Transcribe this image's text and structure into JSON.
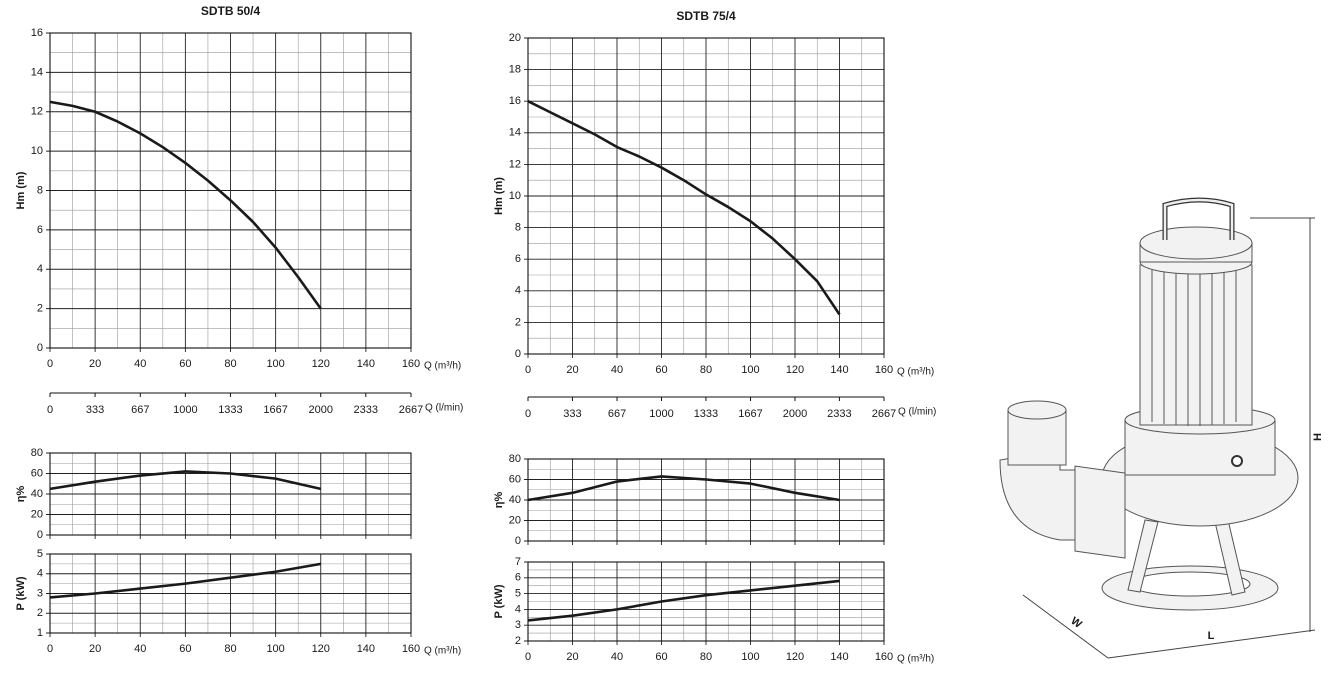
{
  "chart_data": [
    {
      "type": "line",
      "title": "SDTB 50/4",
      "ylabel": "Hm (m)",
      "xlabel": "Q (m³/h)",
      "x": [
        0,
        10,
        20,
        30,
        40,
        50,
        60,
        70,
        80,
        90,
        100,
        110,
        120
      ],
      "series": [
        {
          "color": "#1a1a1a",
          "values": [
            12.5,
            12.3,
            12,
            11.5,
            10.9,
            10.2,
            9.4,
            8.5,
            7.5,
            6.4,
            5.1,
            3.6,
            2
          ]
        }
      ],
      "xlim": [
        0,
        160
      ],
      "xticks": [
        0,
        20,
        40,
        60,
        80,
        100,
        120,
        140,
        160
      ],
      "xminor": [
        10,
        30,
        50,
        70,
        90,
        110,
        130,
        150
      ],
      "ylim": [
        0,
        16
      ],
      "yticks": [
        0,
        2,
        4,
        6,
        8,
        10,
        12,
        14,
        16
      ],
      "yminor": [
        1,
        3,
        5,
        7,
        9,
        11,
        13,
        15
      ],
      "grid": true,
      "x2label": "Q (l/min)",
      "x2lim": [
        0,
        2667
      ],
      "x2ticks": [
        0,
        333,
        667,
        1000,
        1333,
        1667,
        2000,
        2333,
        2667
      ]
    },
    {
      "type": "line",
      "ylabel": "η%",
      "x": [
        0,
        20,
        40,
        60,
        80,
        100,
        120
      ],
      "series": [
        {
          "color": "#1a1a1a",
          "values": [
            45,
            52,
            58,
            62,
            60,
            55,
            45
          ]
        }
      ],
      "xlim": [
        0,
        160
      ],
      "xticks": [
        0,
        20,
        40,
        60,
        80,
        100,
        120,
        140,
        160
      ],
      "xminor": [
        10,
        30,
        50,
        70,
        90,
        110,
        130,
        150
      ],
      "xtick_labels": false,
      "ylim": [
        0,
        80
      ],
      "yticks": [
        0,
        20,
        40,
        60,
        80
      ],
      "yminor": [
        10,
        30,
        50,
        70
      ],
      "grid": true
    },
    {
      "type": "line",
      "ylabel": "P (kW)",
      "xlabel": "Q (m³/h)",
      "x": [
        0,
        20,
        40,
        60,
        80,
        100,
        120
      ],
      "series": [
        {
          "color": "#1a1a1a",
          "values": [
            2.8,
            3,
            3.25,
            3.5,
            3.8,
            4.1,
            4.5
          ]
        }
      ],
      "xlim": [
        0,
        160
      ],
      "xticks": [
        0,
        20,
        40,
        60,
        80,
        100,
        120,
        140,
        160
      ],
      "xminor": [
        10,
        30,
        50,
        70,
        90,
        110,
        130,
        150
      ],
      "ylim": [
        1,
        5
      ],
      "yticks": [
        1,
        2,
        3,
        4,
        5
      ],
      "yminor": [
        1.5,
        2.5,
        3.5,
        4.5
      ],
      "grid": true
    },
    {
      "type": "line",
      "title": "SDTB 75/4",
      "ylabel": "Hm (m)",
      "xlabel": "Q (m³/h)",
      "x": [
        0,
        10,
        20,
        30,
        40,
        50,
        60,
        70,
        80,
        90,
        100,
        110,
        120,
        130,
        140
      ],
      "series": [
        {
          "color": "#1a1a1a",
          "values": [
            16,
            15.3,
            14.6,
            13.9,
            13.1,
            12.5,
            11.8,
            11,
            10.1,
            9.3,
            8.4,
            7.3,
            6,
            4.6,
            2.5
          ]
        }
      ],
      "xlim": [
        0,
        160
      ],
      "xticks": [
        0,
        20,
        40,
        60,
        80,
        100,
        120,
        140,
        160
      ],
      "xminor": [
        10,
        30,
        50,
        70,
        90,
        110,
        130,
        150
      ],
      "ylim": [
        0,
        20
      ],
      "yticks": [
        0,
        2,
        4,
        6,
        8,
        10,
        12,
        14,
        16,
        18,
        20
      ],
      "yminor": [
        1,
        3,
        5,
        7,
        9,
        11,
        13,
        15,
        17,
        19
      ],
      "grid": true,
      "x2label": "Q (l/min)",
      "x2lim": [
        0,
        2667
      ],
      "x2ticks": [
        0,
        333,
        667,
        1000,
        1333,
        1667,
        2000,
        2333,
        2667
      ]
    },
    {
      "type": "line",
      "ylabel": "η%",
      "x": [
        0,
        20,
        40,
        60,
        80,
        100,
        120,
        140
      ],
      "series": [
        {
          "color": "#1a1a1a",
          "values": [
            40,
            47,
            58,
            63,
            60,
            56,
            47,
            40
          ]
        }
      ],
      "xlim": [
        0,
        160
      ],
      "xticks": [
        0,
        20,
        40,
        60,
        80,
        100,
        120,
        140,
        160
      ],
      "xminor": [
        10,
        30,
        50,
        70,
        90,
        110,
        130,
        150
      ],
      "xtick_labels": false,
      "ylim": [
        0,
        80
      ],
      "yticks": [
        0,
        20,
        40,
        60,
        80
      ],
      "yminor": [
        10,
        30,
        50,
        70
      ],
      "grid": true
    },
    {
      "type": "line",
      "ylabel": "P (kW)",
      "xlabel": "Q (m³/h)",
      "x": [
        0,
        20,
        40,
        60,
        80,
        100,
        120,
        140
      ],
      "series": [
        {
          "color": "#1a1a1a",
          "values": [
            3.3,
            3.6,
            4,
            4.5,
            4.9,
            5.2,
            5.5,
            5.8
          ]
        }
      ],
      "xlim": [
        0,
        160
      ],
      "xticks": [
        0,
        20,
        40,
        60,
        80,
        100,
        120,
        140,
        160
      ],
      "xminor": [
        10,
        30,
        50,
        70,
        90,
        110,
        130,
        150
      ],
      "ylim": [
        2,
        7
      ],
      "yticks": [
        2,
        3,
        4,
        5,
        6,
        7
      ],
      "yminor": [
        2.5,
        3.5,
        4.5,
        5.5,
        6.5
      ],
      "grid": true
    }
  ],
  "drawing": {
    "labels": [
      "H",
      "W",
      "L"
    ]
  }
}
